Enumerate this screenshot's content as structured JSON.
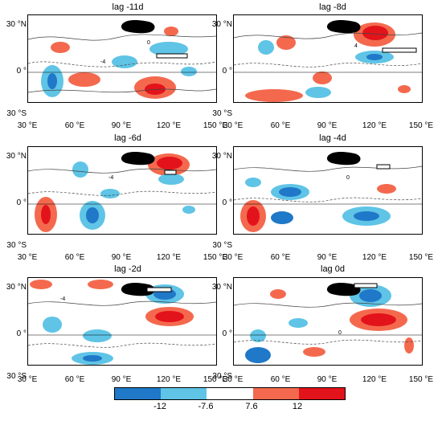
{
  "panels": [
    {
      "title": "lag -11d"
    },
    {
      "title": "lag -8d"
    },
    {
      "title": "lag -6d"
    },
    {
      "title": "lag -4d"
    },
    {
      "title": "lag -2d"
    },
    {
      "title": "lag 0d"
    }
  ],
  "axes": {
    "y_labels": [
      "30 °N",
      "0 °",
      "30 °S"
    ],
    "x_labels": [
      "30 °E",
      "60 °E",
      "90 °E",
      "120 °E",
      "150 °E"
    ]
  },
  "contour_labels": [
    "-4",
    "0",
    "4"
  ],
  "colorbar": {
    "labels": [
      "-12",
      "-7.6",
      "7.6",
      "12"
    ],
    "colors": [
      "#1f78c8",
      "#5fc4e6",
      "#ffffff",
      "#f4694e",
      "#e3131b"
    ]
  },
  "colors": {
    "negative_strong": "#1f78c8",
    "negative_weak": "#5fc4e6",
    "positive_weak": "#f4694e",
    "positive_strong": "#e3131b",
    "plateau": "#000000"
  }
}
